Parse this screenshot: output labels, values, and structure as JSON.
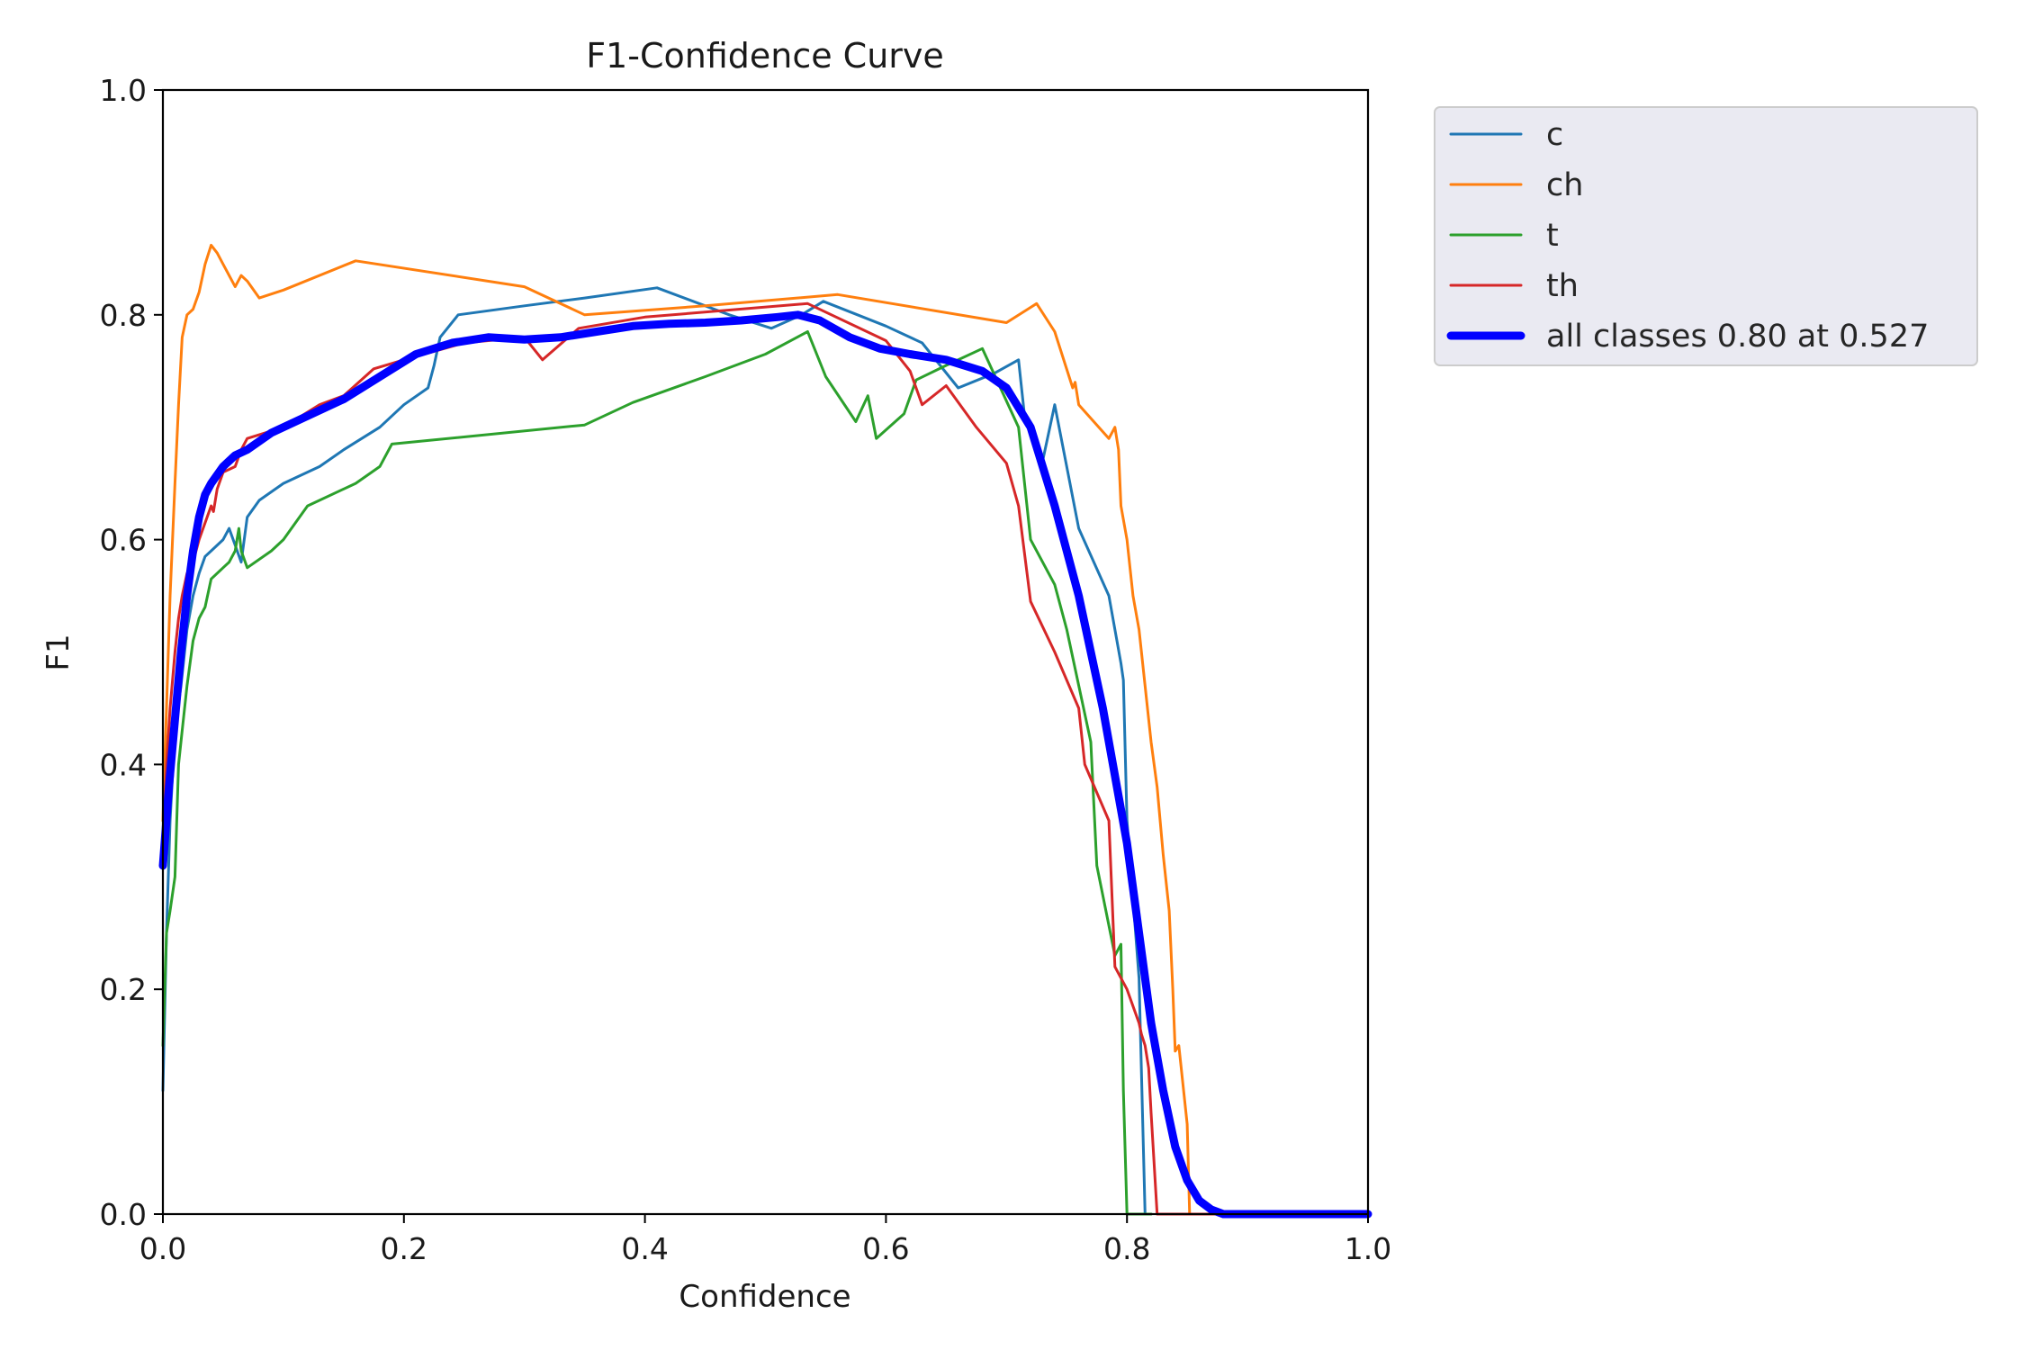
{
  "chart_data": {
    "type": "line",
    "title": "F1-Confidence Curve",
    "xlabel": "Confidence",
    "ylabel": "F1",
    "xlim": [
      0,
      1
    ],
    "ylim": [
      0,
      1
    ],
    "xticks": [
      "0.0",
      "0.2",
      "0.4",
      "0.6",
      "0.8",
      "1.0"
    ],
    "yticks": [
      "0.0",
      "0.2",
      "0.4",
      "0.6",
      "0.8",
      "1.0"
    ],
    "grid": false,
    "legend_position": "outside upper right",
    "series": [
      {
        "name": "c",
        "color": "#1f77b4",
        "width": "thin",
        "x": [
          0.0,
          0.003,
          0.006,
          0.01,
          0.015,
          0.02,
          0.025,
          0.03,
          0.035,
          0.04,
          0.05,
          0.055,
          0.06,
          0.065,
          0.07,
          0.08,
          0.1,
          0.13,
          0.15,
          0.18,
          0.19,
          0.2,
          0.22,
          0.225,
          0.23,
          0.245,
          0.3,
          0.35,
          0.41,
          0.47,
          0.505,
          0.53,
          0.548,
          0.6,
          0.63,
          0.66,
          0.69,
          0.71,
          0.715,
          0.73,
          0.74,
          0.76,
          0.785,
          0.795,
          0.797,
          0.8,
          0.81,
          0.815,
          0.817,
          0.82
        ],
        "y": [
          0.11,
          0.25,
          0.35,
          0.43,
          0.47,
          0.52,
          0.55,
          0.57,
          0.585,
          0.59,
          0.6,
          0.61,
          0.595,
          0.58,
          0.62,
          0.635,
          0.65,
          0.665,
          0.68,
          0.7,
          0.71,
          0.72,
          0.735,
          0.755,
          0.78,
          0.8,
          0.808,
          0.815,
          0.824,
          0.8,
          0.788,
          0.8,
          0.812,
          0.79,
          0.775,
          0.735,
          0.748,
          0.76,
          0.71,
          0.67,
          0.72,
          0.61,
          0.55,
          0.49,
          0.475,
          0.35,
          0.21,
          0.0,
          0.0,
          0.0
        ]
      },
      {
        "name": "ch",
        "color": "#ff7f0e",
        "width": "thin",
        "x": [
          0.0,
          0.003,
          0.006,
          0.01,
          0.013,
          0.016,
          0.02,
          0.025,
          0.03,
          0.035,
          0.04,
          0.045,
          0.05,
          0.06,
          0.065,
          0.07,
          0.08,
          0.1,
          0.16,
          0.3,
          0.35,
          0.45,
          0.56,
          0.7,
          0.725,
          0.74,
          0.755,
          0.757,
          0.76,
          0.785,
          0.79,
          0.793,
          0.795,
          0.8,
          0.805,
          0.81,
          0.82,
          0.825,
          0.83,
          0.835,
          0.838,
          0.84,
          0.843,
          0.85,
          0.852,
          0.86,
          1.0
        ],
        "y": [
          0.35,
          0.45,
          0.55,
          0.65,
          0.72,
          0.78,
          0.8,
          0.805,
          0.82,
          0.845,
          0.862,
          0.855,
          0.845,
          0.825,
          0.835,
          0.83,
          0.815,
          0.822,
          0.848,
          0.825,
          0.8,
          0.808,
          0.818,
          0.793,
          0.81,
          0.785,
          0.735,
          0.74,
          0.72,
          0.69,
          0.7,
          0.68,
          0.63,
          0.6,
          0.55,
          0.52,
          0.42,
          0.38,
          0.32,
          0.27,
          0.2,
          0.145,
          0.15,
          0.08,
          0.0,
          0.0,
          0.0
        ]
      },
      {
        "name": "t",
        "color": "#2ca02c",
        "width": "thin",
        "x": [
          0.0,
          0.003,
          0.006,
          0.01,
          0.013,
          0.016,
          0.02,
          0.025,
          0.03,
          0.035,
          0.04,
          0.05,
          0.055,
          0.06,
          0.063,
          0.065,
          0.07,
          0.09,
          0.1,
          0.12,
          0.16,
          0.18,
          0.19,
          0.35,
          0.39,
          0.45,
          0.5,
          0.535,
          0.55,
          0.575,
          0.585,
          0.592,
          0.615,
          0.625,
          0.65,
          0.68,
          0.71,
          0.72,
          0.74,
          0.75,
          0.77,
          0.775,
          0.79,
          0.795,
          0.797,
          0.8,
          0.805,
          0.81,
          0.82
        ],
        "y": [
          0.15,
          0.25,
          0.27,
          0.3,
          0.4,
          0.43,
          0.47,
          0.51,
          0.53,
          0.54,
          0.565,
          0.575,
          0.58,
          0.59,
          0.61,
          0.59,
          0.575,
          0.59,
          0.6,
          0.63,
          0.65,
          0.665,
          0.685,
          0.702,
          0.722,
          0.745,
          0.765,
          0.785,
          0.745,
          0.705,
          0.728,
          0.69,
          0.712,
          0.742,
          0.755,
          0.77,
          0.7,
          0.6,
          0.56,
          0.52,
          0.42,
          0.31,
          0.23,
          0.24,
          0.11,
          0.0,
          0.0,
          0.0,
          0.0
        ]
      },
      {
        "name": "th",
        "color": "#d62728",
        "width": "thin",
        "x": [
          0.0,
          0.003,
          0.006,
          0.01,
          0.013,
          0.016,
          0.02,
          0.025,
          0.03,
          0.04,
          0.042,
          0.045,
          0.05,
          0.06,
          0.065,
          0.07,
          0.1,
          0.13,
          0.15,
          0.175,
          0.2,
          0.25,
          0.3,
          0.315,
          0.345,
          0.4,
          0.535,
          0.6,
          0.62,
          0.63,
          0.65,
          0.675,
          0.7,
          0.71,
          0.72,
          0.74,
          0.76,
          0.765,
          0.785,
          0.79,
          0.8,
          0.81,
          0.812,
          0.815,
          0.818,
          0.82,
          0.825,
          1.0
        ],
        "y": [
          0.32,
          0.4,
          0.45,
          0.5,
          0.53,
          0.55,
          0.57,
          0.58,
          0.6,
          0.63,
          0.625,
          0.645,
          0.66,
          0.665,
          0.68,
          0.69,
          0.7,
          0.72,
          0.728,
          0.752,
          0.76,
          0.775,
          0.78,
          0.76,
          0.788,
          0.798,
          0.81,
          0.777,
          0.75,
          0.72,
          0.737,
          0.7,
          0.668,
          0.63,
          0.545,
          0.5,
          0.45,
          0.4,
          0.35,
          0.22,
          0.2,
          0.17,
          0.16,
          0.15,
          0.13,
          0.09,
          0.0,
          0.0
        ]
      },
      {
        "name": "all classes 0.80 at 0.527",
        "color": "#0000ff",
        "width": "thick",
        "x": [
          0.0,
          0.005,
          0.01,
          0.015,
          0.02,
          0.025,
          0.03,
          0.035,
          0.04,
          0.05,
          0.06,
          0.07,
          0.09,
          0.12,
          0.15,
          0.18,
          0.21,
          0.24,
          0.27,
          0.3,
          0.33,
          0.36,
          0.39,
          0.42,
          0.45,
          0.48,
          0.51,
          0.527,
          0.545,
          0.57,
          0.595,
          0.62,
          0.65,
          0.68,
          0.7,
          0.72,
          0.74,
          0.76,
          0.78,
          0.8,
          0.81,
          0.82,
          0.83,
          0.84,
          0.85,
          0.86,
          0.87,
          0.88,
          0.9,
          1.0
        ],
        "y": [
          0.31,
          0.38,
          0.44,
          0.5,
          0.55,
          0.59,
          0.62,
          0.64,
          0.65,
          0.665,
          0.675,
          0.68,
          0.695,
          0.71,
          0.725,
          0.745,
          0.765,
          0.775,
          0.78,
          0.778,
          0.78,
          0.785,
          0.79,
          0.792,
          0.793,
          0.795,
          0.798,
          0.8,
          0.795,
          0.78,
          0.77,
          0.765,
          0.76,
          0.75,
          0.735,
          0.7,
          0.63,
          0.55,
          0.45,
          0.33,
          0.25,
          0.17,
          0.11,
          0.06,
          0.03,
          0.012,
          0.004,
          0.0,
          0.0,
          0.0
        ]
      }
    ]
  }
}
